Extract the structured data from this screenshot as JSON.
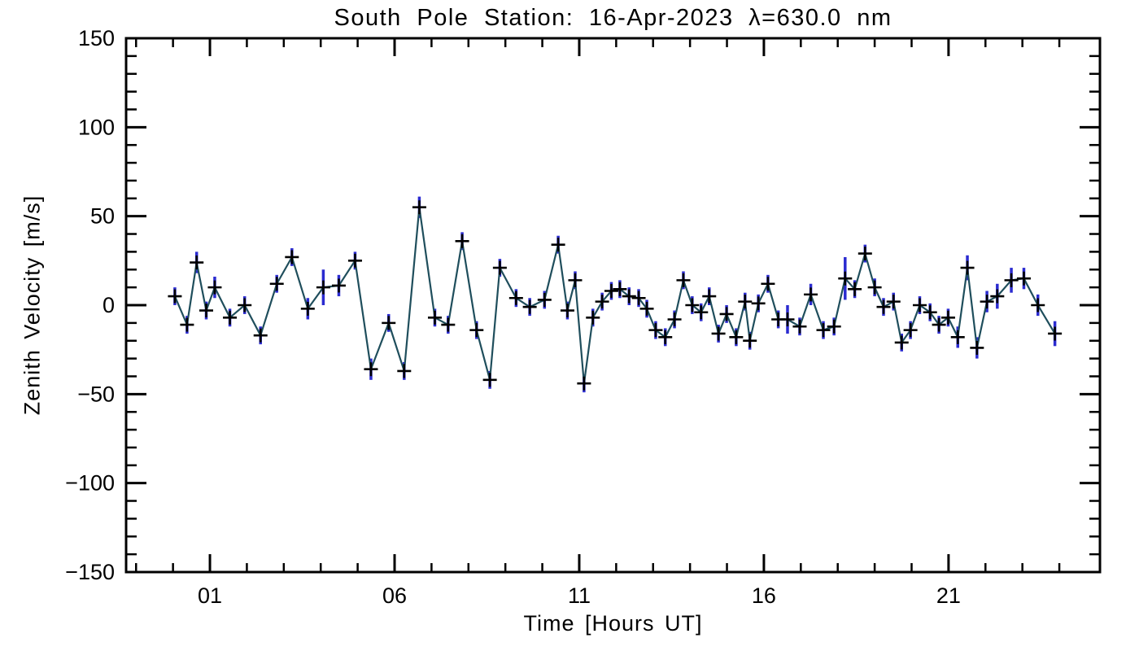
{
  "chart_data": {
    "type": "line",
    "title": "South Pole Station: 16-Apr-2023 λ=630.0 nm",
    "xlabel": "Time [Hours UT]",
    "ylabel": "Zenith Velocity [m/s]",
    "xlim": [
      -1.27,
      25.1
    ],
    "ylim": [
      -150,
      150
    ],
    "x_major_ticks": [
      {
        "v": 1,
        "label": "01"
      },
      {
        "v": 6,
        "label": "06"
      },
      {
        "v": 11,
        "label": "11"
      },
      {
        "v": 16,
        "label": "16"
      },
      {
        "v": 21,
        "label": "21"
      }
    ],
    "x_minor_step": 1,
    "x_minor_range": [
      -1,
      24
    ],
    "y_major_ticks": [
      {
        "v": -150,
        "label": "−150"
      },
      {
        "v": -100,
        "label": "−100"
      },
      {
        "v": -50,
        "label": "−50"
      },
      {
        "v": 0,
        "label": "0"
      },
      {
        "v": 50,
        "label": "50"
      },
      {
        "v": 100,
        "label": "100"
      },
      {
        "v": 150,
        "label": "150"
      }
    ],
    "y_minor_step": 10,
    "grid": false,
    "legend": "none",
    "error_bars": true,
    "marker": "plus",
    "colors": {
      "line": "#1f4e5c",
      "error_bar": "#2b2bd0",
      "marker": "#000000",
      "axis": "#000000",
      "background": "#ffffff"
    },
    "points_format": [
      "hour_ut",
      "velocity_m_s",
      "error_m_s"
    ],
    "series": [
      {
        "name": "Zenith velocity",
        "points": [
          [
            0.05,
            5,
            5
          ],
          [
            0.38,
            -11,
            5
          ],
          [
            0.64,
            24,
            6
          ],
          [
            0.9,
            -3,
            5
          ],
          [
            1.13,
            10,
            6
          ],
          [
            1.54,
            -7,
            5
          ],
          [
            1.94,
            0,
            5
          ],
          [
            2.37,
            -17,
            5
          ],
          [
            2.81,
            12,
            5
          ],
          [
            3.22,
            27,
            5
          ],
          [
            3.65,
            -2,
            6
          ],
          [
            4.07,
            10,
            10
          ],
          [
            4.49,
            11,
            6
          ],
          [
            4.93,
            25,
            5
          ],
          [
            5.36,
            -36,
            6
          ],
          [
            5.84,
            -10,
            5
          ],
          [
            6.26,
            -37,
            5
          ],
          [
            6.67,
            55,
            6
          ],
          [
            7.09,
            -7,
            5
          ],
          [
            7.45,
            -11,
            5
          ],
          [
            7.83,
            36,
            5
          ],
          [
            8.22,
            -14,
            5
          ],
          [
            8.58,
            -42,
            5
          ],
          [
            8.85,
            21,
            5
          ],
          [
            9.29,
            4,
            5
          ],
          [
            9.66,
            -1,
            5
          ],
          [
            10.06,
            3,
            5
          ],
          [
            10.43,
            34,
            5
          ],
          [
            10.68,
            -3,
            5
          ],
          [
            10.89,
            14,
            5
          ],
          [
            11.13,
            -44,
            5
          ],
          [
            11.37,
            -7,
            5
          ],
          [
            11.62,
            2,
            5
          ],
          [
            11.87,
            8,
            5
          ],
          [
            12.1,
            9,
            5
          ],
          [
            12.35,
            5,
            5
          ],
          [
            12.61,
            4,
            5
          ],
          [
            12.83,
            -2,
            5
          ],
          [
            13.07,
            -14,
            5
          ],
          [
            13.33,
            -18,
            5
          ],
          [
            13.58,
            -8,
            5
          ],
          [
            13.82,
            14,
            5
          ],
          [
            14.06,
            0,
            5
          ],
          [
            14.3,
            -4,
            5
          ],
          [
            14.52,
            5,
            5
          ],
          [
            14.77,
            -16,
            5
          ],
          [
            14.99,
            -5,
            5
          ],
          [
            15.25,
            -18,
            5
          ],
          [
            15.49,
            2,
            5
          ],
          [
            15.62,
            -20,
            5
          ],
          [
            15.85,
            1,
            5
          ],
          [
            16.11,
            12,
            5
          ],
          [
            16.39,
            -8,
            5
          ],
          [
            16.64,
            -8,
            8
          ],
          [
            16.97,
            -12,
            5
          ],
          [
            17.27,
            6,
            6
          ],
          [
            17.61,
            -14,
            5
          ],
          [
            17.9,
            -12,
            5
          ],
          [
            18.2,
            15,
            12
          ],
          [
            18.46,
            9,
            5
          ],
          [
            18.74,
            29,
            5
          ],
          [
            19.0,
            10,
            5
          ],
          [
            19.24,
            -1,
            5
          ],
          [
            19.51,
            2,
            5
          ],
          [
            19.73,
            -21,
            5
          ],
          [
            19.97,
            -14,
            5
          ],
          [
            20.22,
            0,
            5
          ],
          [
            20.5,
            -4,
            5
          ],
          [
            20.74,
            -11,
            5
          ],
          [
            20.99,
            -7,
            5
          ],
          [
            21.25,
            -18,
            6
          ],
          [
            21.51,
            21,
            7
          ],
          [
            21.77,
            -24,
            6
          ],
          [
            22.04,
            2,
            6
          ],
          [
            22.32,
            5,
            7
          ],
          [
            22.7,
            14,
            7
          ],
          [
            23.04,
            15,
            6
          ],
          [
            23.42,
            0,
            6
          ],
          [
            23.88,
            -16,
            7
          ]
        ]
      }
    ]
  }
}
